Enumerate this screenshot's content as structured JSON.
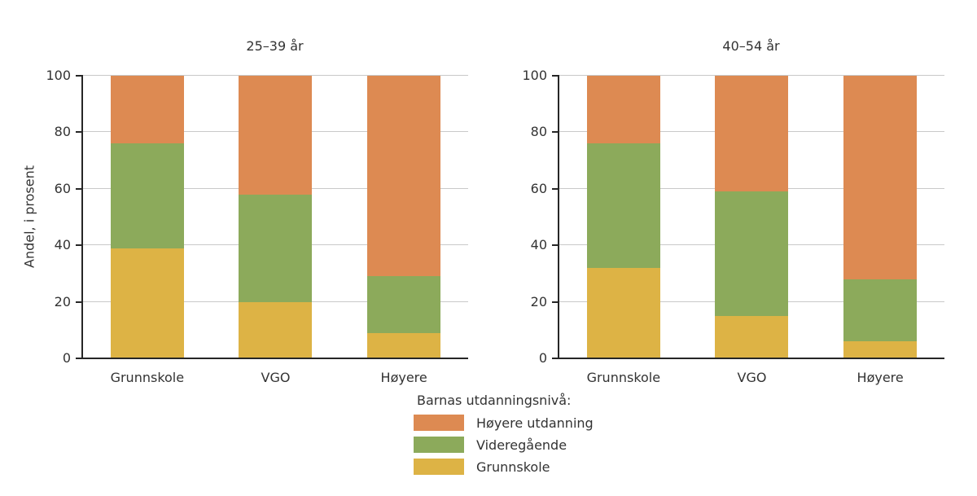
{
  "chart_data": {
    "type": "bar",
    "stacked": true,
    "title": "",
    "ylabel": "Andel, i prosent",
    "xlabel": "",
    "ylim": [
      0,
      100
    ],
    "yticks": [
      0,
      20,
      40,
      60,
      80,
      100
    ],
    "grid": "horizontal",
    "categories": [
      "Grunnskole",
      "VGO",
      "Høyere"
    ],
    "legend": {
      "position": "bottom",
      "title": "Barnas utdanningsnivå:",
      "entries": [
        {
          "label": "Høyere utdanning",
          "color": "#dd8a52"
        },
        {
          "label": "Videregående",
          "color": "#8caa5b"
        },
        {
          "label": "Grunnskole",
          "color": "#ddb345"
        }
      ]
    },
    "panels": [
      {
        "title": "25–39 år",
        "series": [
          {
            "name": "Grunnskole",
            "color": "#ddb345",
            "values": [
              39,
              20,
              9
            ]
          },
          {
            "name": "Videregående",
            "color": "#8caa5b",
            "values": [
              37,
              38,
              20
            ]
          },
          {
            "name": "Høyere utdanning",
            "color": "#dd8a52",
            "values": [
              24,
              42,
              71
            ]
          }
        ]
      },
      {
        "title": "40–54 år",
        "series": [
          {
            "name": "Grunnskole",
            "color": "#ddb345",
            "values": [
              32,
              15,
              6
            ]
          },
          {
            "name": "Videregående",
            "color": "#8caa5b",
            "values": [
              44,
              44,
              22
            ]
          },
          {
            "name": "Høyere utdanning",
            "color": "#dd8a52",
            "values": [
              24,
              41,
              72
            ]
          }
        ]
      }
    ],
    "colors": {
      "axis": "#262626",
      "gridline": "#c9c9c9",
      "text": "#333333",
      "background": "#ffffff"
    }
  }
}
